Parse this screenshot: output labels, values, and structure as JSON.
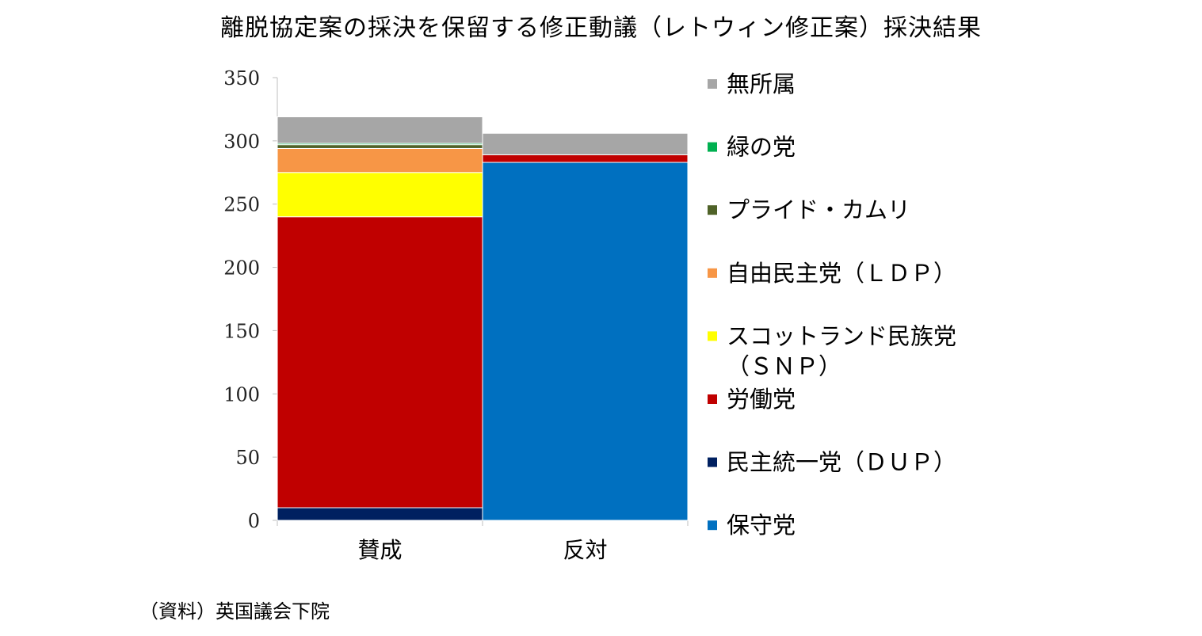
{
  "title": "離脱協定案の採決を保留する修正動議（レトウィン修正案）採決結果",
  "source": "（資料）英国議会下院",
  "chart_data": {
    "type": "bar",
    "stacked": true,
    "title": "離脱協定案の採決を保留する修正動議（レトウィン修正案）採決結果",
    "xlabel": "",
    "ylabel": "",
    "ylim": [
      0,
      350
    ],
    "yticks": [
      0,
      50,
      100,
      150,
      200,
      250,
      300,
      350
    ],
    "categories": [
      "賛成",
      "反対"
    ],
    "legend_position": "right",
    "grid": false,
    "series": [
      {
        "name": "保守党",
        "color": "#0070C0",
        "values": [
          0,
          283
        ]
      },
      {
        "name": "民主統一党（ＤＵＰ）",
        "color": "#002060",
        "values": [
          10,
          0
        ]
      },
      {
        "name": "労働党",
        "color": "#C00000",
        "values": [
          230,
          6
        ]
      },
      {
        "name": "スコットランド民族党（ＳＮＰ）",
        "color": "#FFFF00",
        "values": [
          35,
          0
        ]
      },
      {
        "name": "自由民主党（ＬＤＰ）",
        "color": "#F79646",
        "values": [
          19,
          0
        ]
      },
      {
        "name": "プライド・カムリ",
        "color": "#4F6228",
        "values": [
          3,
          0
        ]
      },
      {
        "name": "緑の党",
        "color": "#00B050",
        "values": [
          1,
          0
        ]
      },
      {
        "name": "無所属",
        "color": "#A6A6A6",
        "values": [
          21,
          17
        ]
      }
    ]
  }
}
